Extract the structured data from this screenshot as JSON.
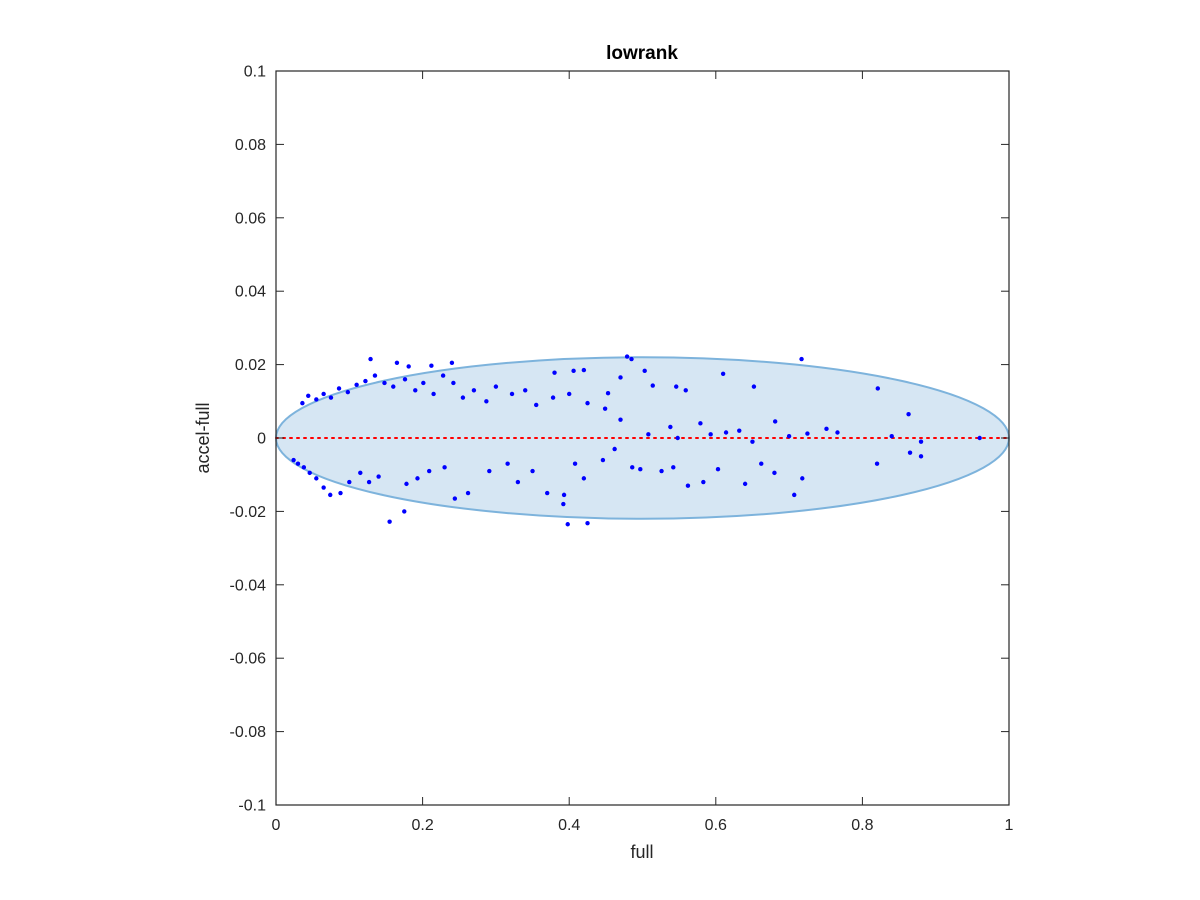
{
  "chart_data": {
    "type": "scatter",
    "title": "lowrank",
    "xlabel": "full",
    "ylabel": "accel-full",
    "xlim": [
      0,
      1
    ],
    "ylim": [
      -0.1,
      0.1
    ],
    "xticks": [
      0,
      0.2,
      0.4,
      0.6,
      0.8,
      1
    ],
    "xtick_labels": [
      "0",
      "0.2",
      "0.4",
      "0.6",
      "0.8",
      "1"
    ],
    "yticks": [
      -0.1,
      -0.08,
      -0.06,
      -0.04,
      -0.02,
      0,
      0.02,
      0.04,
      0.06,
      0.08,
      0.1
    ],
    "ytick_labels": [
      "-0.1",
      "-0.08",
      "-0.06",
      "-0.04",
      "-0.02",
      "0",
      "0.02",
      "0.04",
      "0.06",
      "0.08",
      "0.1"
    ],
    "grid": false,
    "box": true,
    "reference_line": {
      "y": 0,
      "x_range": [
        0,
        1
      ],
      "style": "dotted",
      "color": "#ff0000"
    },
    "ellipse": {
      "cx": 0.5,
      "cy": 0,
      "rx": 0.5,
      "ry": 0.022,
      "fill": "#d6e6f3",
      "stroke": "#7db3dc"
    },
    "colors": {
      "points": "#0000ff",
      "axes": "#262626"
    },
    "series": [
      {
        "marker": "dot",
        "color": "#0000ff",
        "points": [
          [
            0.129,
            0.0215
          ],
          [
            0.165,
            0.0205
          ],
          [
            0.181,
            0.0195
          ],
          [
            0.212,
            0.0197
          ],
          [
            0.24,
            0.0205
          ],
          [
            0.479,
            0.0222
          ],
          [
            0.485,
            0.0215
          ],
          [
            0.717,
            0.0215
          ],
          [
            0.38,
            0.0178
          ],
          [
            0.406,
            0.0183
          ],
          [
            0.42,
            0.0185
          ],
          [
            0.453,
            0.0122
          ],
          [
            0.47,
            0.0165
          ],
          [
            0.503,
            0.0183
          ],
          [
            0.514,
            0.0143
          ],
          [
            0.546,
            0.014
          ],
          [
            0.559,
            0.013
          ],
          [
            0.61,
            0.0175
          ],
          [
            0.652,
            0.014
          ],
          [
            0.821,
            0.0135
          ],
          [
            0.863,
            0.0065
          ],
          [
            0.751,
            0.0025
          ],
          [
            0.766,
            0.0015
          ],
          [
            0.725,
            0.0012
          ],
          [
            0.681,
            0.0045
          ],
          [
            0.632,
            0.002
          ],
          [
            0.614,
            0.0015
          ],
          [
            0.579,
            0.004
          ],
          [
            0.538,
            0.003
          ],
          [
            0.508,
            0.001
          ],
          [
            0.47,
            0.005
          ],
          [
            0.449,
            0.008
          ],
          [
            0.425,
            0.0095
          ],
          [
            0.4,
            0.012
          ],
          [
            0.378,
            0.011
          ],
          [
            0.355,
            0.009
          ],
          [
            0.34,
            0.013
          ],
          [
            0.322,
            0.012
          ],
          [
            0.3,
            0.014
          ],
          [
            0.287,
            0.01
          ],
          [
            0.27,
            0.013
          ],
          [
            0.255,
            0.011
          ],
          [
            0.242,
            0.015
          ],
          [
            0.228,
            0.017
          ],
          [
            0.215,
            0.012
          ],
          [
            0.201,
            0.015
          ],
          [
            0.19,
            0.013
          ],
          [
            0.176,
            0.016
          ],
          [
            0.16,
            0.014
          ],
          [
            0.148,
            0.015
          ],
          [
            0.135,
            0.017
          ],
          [
            0.122,
            0.0155
          ],
          [
            0.11,
            0.0145
          ],
          [
            0.098,
            0.0125
          ],
          [
            0.086,
            0.0135
          ],
          [
            0.075,
            0.011
          ],
          [
            0.065,
            0.012
          ],
          [
            0.055,
            0.0105
          ],
          [
            0.044,
            0.0115
          ],
          [
            0.036,
            0.0095
          ],
          [
            0.82,
            -0.007
          ],
          [
            0.865,
            -0.004
          ],
          [
            0.88,
            -0.005
          ],
          [
            0.718,
            -0.011
          ],
          [
            0.707,
            -0.0155
          ],
          [
            0.68,
            -0.0095
          ],
          [
            0.662,
            -0.007
          ],
          [
            0.64,
            -0.0125
          ],
          [
            0.603,
            -0.0085
          ],
          [
            0.583,
            -0.012
          ],
          [
            0.562,
            -0.013
          ],
          [
            0.542,
            -0.008
          ],
          [
            0.526,
            -0.009
          ],
          [
            0.497,
            -0.0085
          ],
          [
            0.486,
            -0.008
          ],
          [
            0.462,
            -0.003
          ],
          [
            0.446,
            -0.006
          ],
          [
            0.42,
            -0.011
          ],
          [
            0.408,
            -0.007
          ],
          [
            0.398,
            -0.0235
          ],
          [
            0.425,
            -0.0232
          ],
          [
            0.393,
            -0.0155
          ],
          [
            0.392,
            -0.018
          ],
          [
            0.37,
            -0.015
          ],
          [
            0.35,
            -0.009
          ],
          [
            0.33,
            -0.012
          ],
          [
            0.316,
            -0.007
          ],
          [
            0.291,
            -0.009
          ],
          [
            0.262,
            -0.015
          ],
          [
            0.244,
            -0.0165
          ],
          [
            0.23,
            -0.008
          ],
          [
            0.209,
            -0.009
          ],
          [
            0.193,
            -0.011
          ],
          [
            0.178,
            -0.0125
          ],
          [
            0.175,
            -0.02
          ],
          [
            0.155,
            -0.0228
          ],
          [
            0.14,
            -0.0105
          ],
          [
            0.127,
            -0.012
          ],
          [
            0.115,
            -0.0095
          ],
          [
            0.1,
            -0.012
          ],
          [
            0.088,
            -0.015
          ],
          [
            0.074,
            -0.0155
          ],
          [
            0.065,
            -0.0135
          ],
          [
            0.055,
            -0.011
          ],
          [
            0.046,
            -0.0095
          ],
          [
            0.038,
            -0.008
          ],
          [
            0.03,
            -0.007
          ],
          [
            0.024,
            -0.006
          ],
          [
            0.96,
            0.0
          ],
          [
            0.548,
            0.0
          ],
          [
            0.593,
            0.001
          ],
          [
            0.65,
            -0.001
          ],
          [
            0.7,
            0.0005
          ],
          [
            0.84,
            0.0005
          ],
          [
            0.88,
            -0.001
          ]
        ]
      }
    ]
  }
}
